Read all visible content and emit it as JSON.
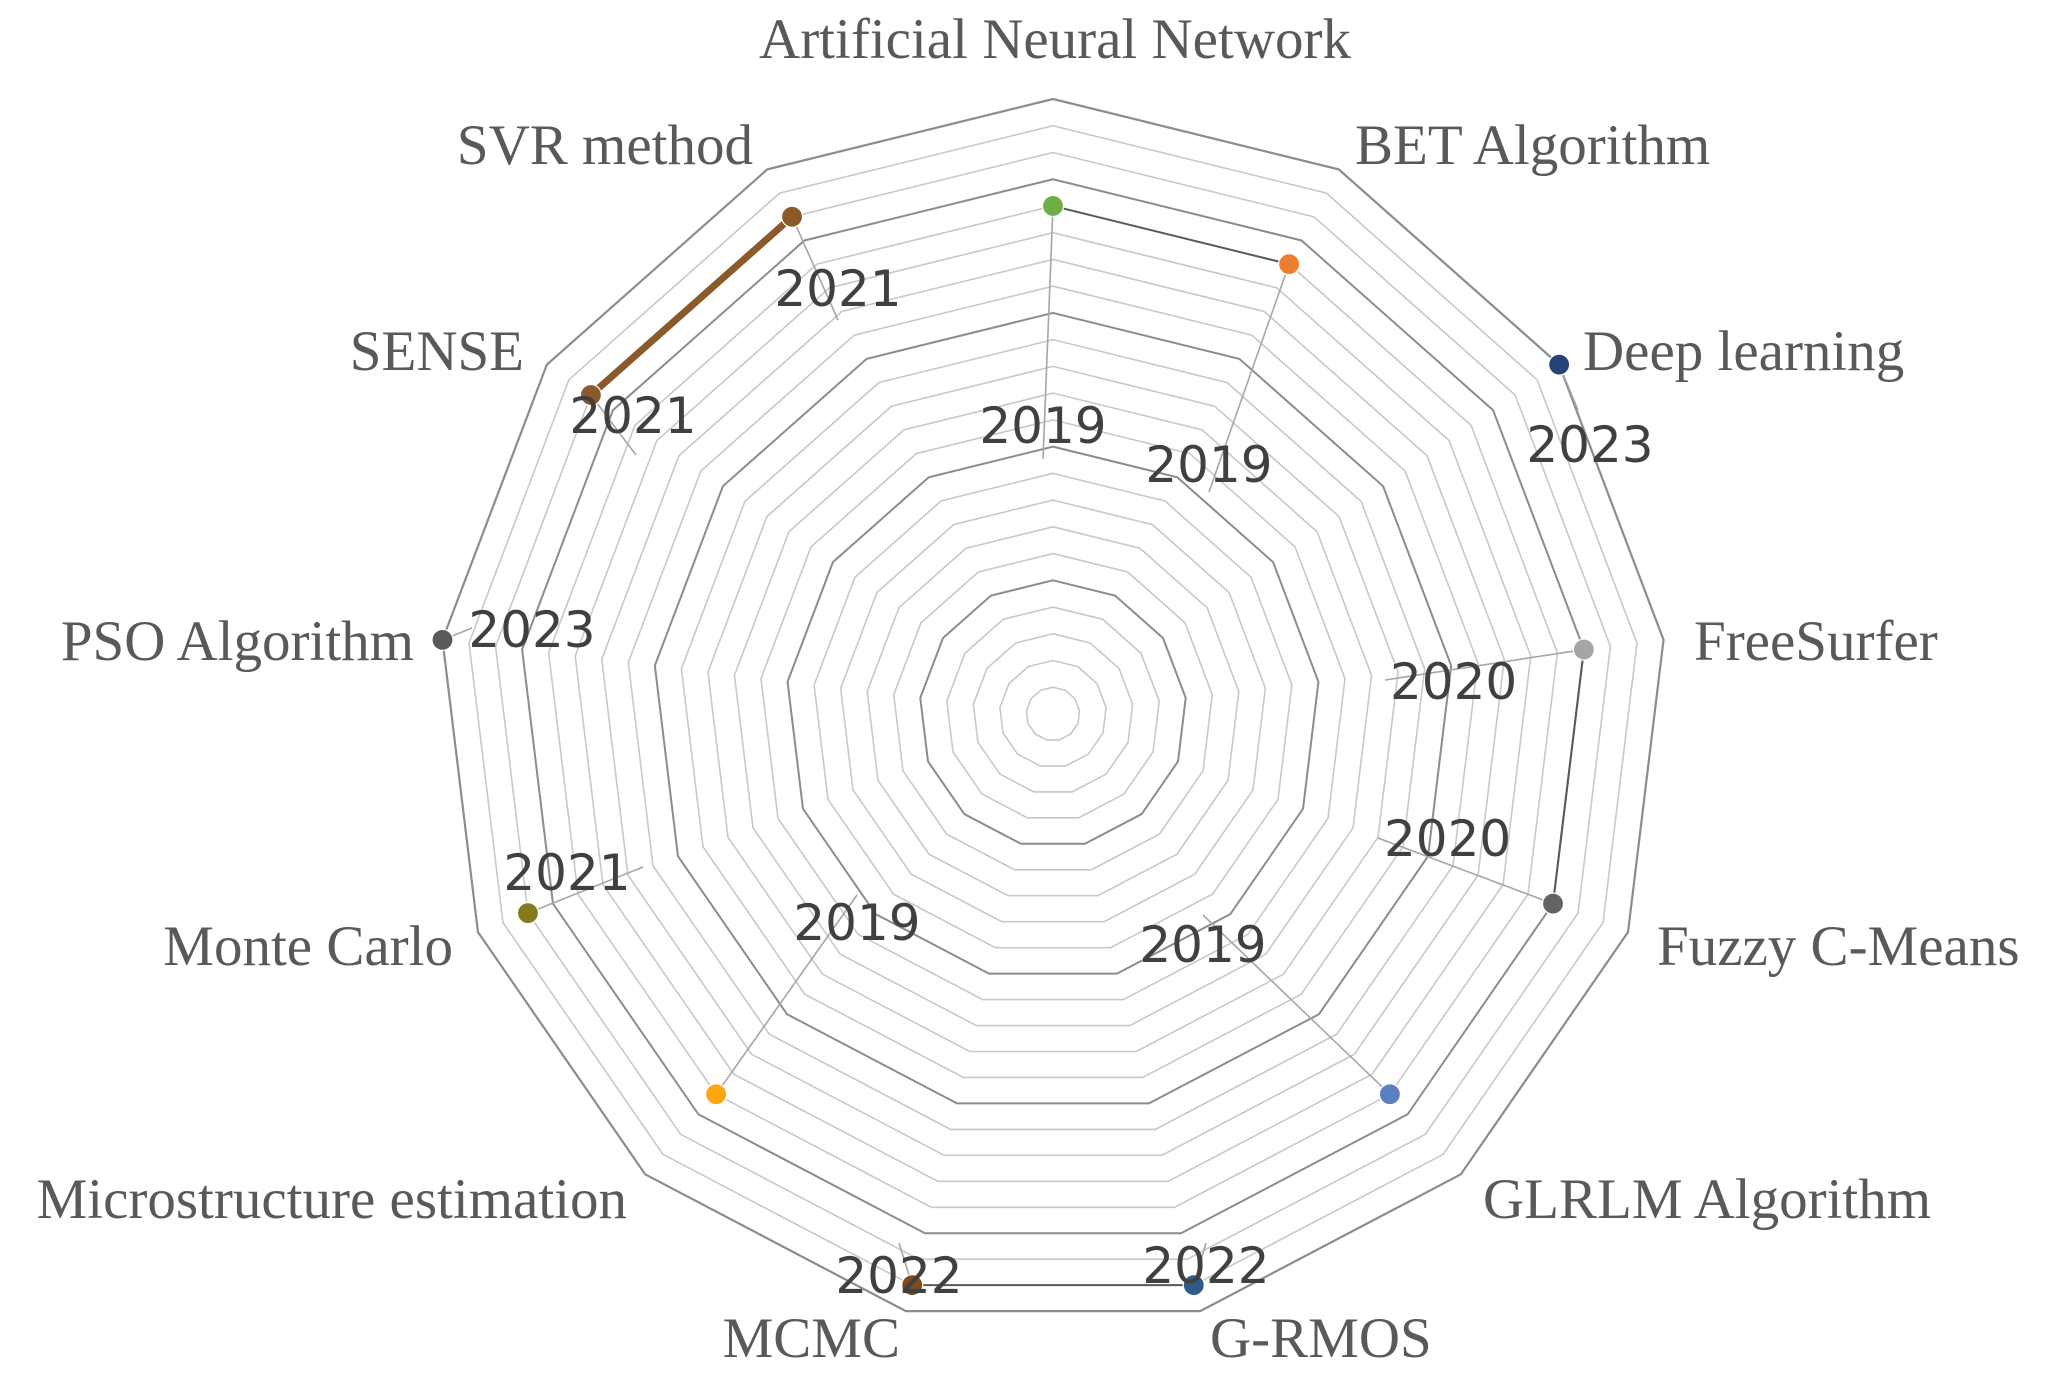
{
  "chart_data": {
    "type": "radar",
    "categories": [
      "Artificial Neural Network",
      "BET Algorithm",
      "Deep learning",
      "FreeSurfer",
      "Fuzzy C-Means",
      "GLRLM Algorithm",
      "G-RMOS",
      "MCMC",
      "Microstructure estimation",
      "Monte Carlo",
      "PSO Algorithm",
      "SENSE",
      "SVR method"
    ],
    "axis_range": [
      2000,
      2023
    ],
    "grid_step": 1,
    "points": [
      {
        "category": "Artificial Neural Network",
        "value": 2019,
        "label": "2019",
        "color": "#70ad47"
      },
      {
        "category": "BET Algorithm",
        "value": 2019,
        "label": "2019",
        "color": "#ed7d31"
      },
      {
        "category": "Deep learning",
        "value": 2023,
        "label": "2023",
        "color": "#264478"
      },
      {
        "category": "FreeSurfer",
        "value": 2020,
        "label": "2020",
        "color": "#a5a5a5"
      },
      {
        "category": "Fuzzy C-Means",
        "value": 2020,
        "label": "2020",
        "color": "#636363"
      },
      {
        "category": "GLRLM Algorithm",
        "value": 2019,
        "label": "2019",
        "color": "#5b7fc0"
      },
      {
        "category": "G-RMOS",
        "value": 2022,
        "label": "2022",
        "color": "#2e5b8a"
      },
      {
        "category": "MCMC",
        "value": 2022,
        "label": "2022",
        "color": "#7f4a1e"
      },
      {
        "category": "Microstructure estimation",
        "value": 2019,
        "label": "2019",
        "color": "#ffa510"
      },
      {
        "category": "Monte Carlo",
        "value": 2021,
        "label": "2021",
        "color": "#857a1c"
      },
      {
        "category": "PSO Algorithm",
        "value": 2023,
        "label": "2023",
        "color": "#5a5a5a"
      },
      {
        "category": "SENSE",
        "value": 2021,
        "label": "2021",
        "color": "#8b5a2b"
      },
      {
        "category": "SVR method",
        "value": 2021,
        "label": "2021",
        "color": "#8b5a2b"
      }
    ],
    "connector_lines": [
      {
        "from": "SENSE",
        "to": "SVR method",
        "color": "#8b5a2b"
      }
    ]
  }
}
